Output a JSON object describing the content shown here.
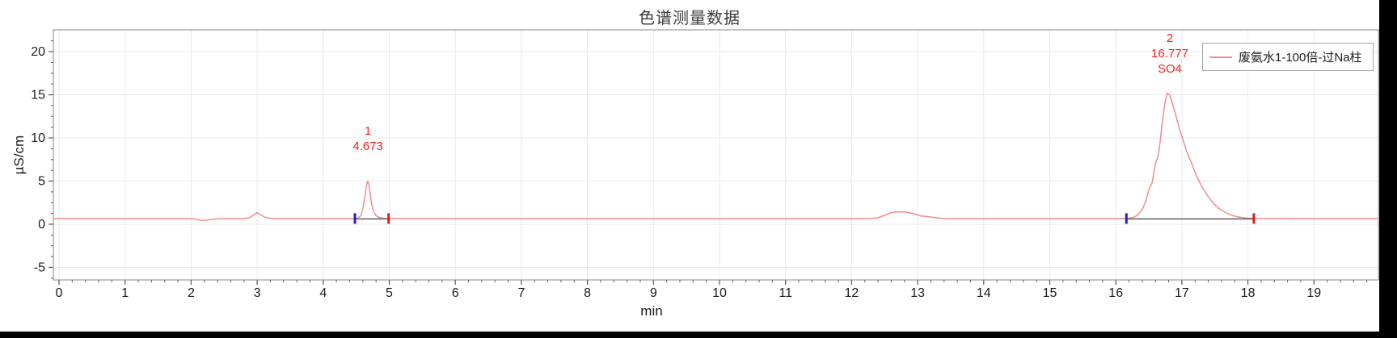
{
  "window": {
    "edge_bar_color": "#000000",
    "background": "#ffffff"
  },
  "chart_data": {
    "type": "line",
    "title": "色谱测量数据",
    "xlabel": "min",
    "ylabel": "µS/cm",
    "xlim": [
      -0.09,
      19.98
    ],
    "ylim": [
      -6.45,
      22.5
    ],
    "x_major_ticks": [
      0,
      1,
      2,
      3,
      4,
      5,
      6,
      7,
      8,
      9,
      10,
      11,
      12,
      13,
      14,
      15,
      16,
      17,
      18,
      19
    ],
    "x_minor_step": 0.2,
    "y_major_ticks": [
      -5,
      0,
      5,
      10,
      15,
      20
    ],
    "y_minor_step": 1.25,
    "grid": true,
    "legend": {
      "position": "top-right",
      "entries": [
        {
          "label": "废氨水1-100倍-过Na柱",
          "color": "#f28c8c"
        }
      ]
    },
    "colors": {
      "trace": "#f28c8c",
      "peak_label": "#fa1e1e",
      "grid": "#eaeaea",
      "frame": "#9b9b9b",
      "tick": "#5a5a5a",
      "tick_label": "#1a1a1a",
      "integration_baseline": "#5f5f5f",
      "marker_start": "#2222cc",
      "marker_end": "#d42020"
    },
    "baseline_level": 0.65,
    "peaks": [
      {
        "number": "1",
        "retention_time": "4.673",
        "annotation": "",
        "apex_x": 4.673,
        "apex_y": 5.0
      },
      {
        "number": "2",
        "retention_time": "16.777",
        "annotation": "SO4",
        "apex_x": 16.777,
        "apex_y": 15.2
      }
    ],
    "integrations": [
      {
        "start": 4.48,
        "end": 4.99,
        "level": 0.62
      },
      {
        "start": 16.16,
        "end": 18.09,
        "level": 0.62
      }
    ],
    "series": [
      {
        "name": "废氨水1-100倍-过Na柱",
        "color": "#f28c8c",
        "points": [
          [
            -0.09,
            0.65
          ],
          [
            2.0,
            0.65
          ],
          [
            2.08,
            0.6
          ],
          [
            2.15,
            0.45
          ],
          [
            2.25,
            0.5
          ],
          [
            2.35,
            0.6
          ],
          [
            2.45,
            0.65
          ],
          [
            2.8,
            0.65
          ],
          [
            2.88,
            0.75
          ],
          [
            2.95,
            1.1
          ],
          [
            3.0,
            1.35
          ],
          [
            3.05,
            1.1
          ],
          [
            3.12,
            0.8
          ],
          [
            3.2,
            0.68
          ],
          [
            3.3,
            0.65
          ],
          [
            4.45,
            0.65
          ],
          [
            4.52,
            0.7
          ],
          [
            4.57,
            1.0
          ],
          [
            4.6,
            1.8
          ],
          [
            4.63,
            3.2
          ],
          [
            4.655,
            4.5
          ],
          [
            4.673,
            5.0
          ],
          [
            4.69,
            4.6
          ],
          [
            4.71,
            3.6
          ],
          [
            4.73,
            2.5
          ],
          [
            4.76,
            1.5
          ],
          [
            4.8,
            1.0
          ],
          [
            4.85,
            0.78
          ],
          [
            4.92,
            0.68
          ],
          [
            5.0,
            0.65
          ],
          [
            12.25,
            0.65
          ],
          [
            12.4,
            0.75
          ],
          [
            12.5,
            1.05
          ],
          [
            12.6,
            1.35
          ],
          [
            12.7,
            1.45
          ],
          [
            12.8,
            1.42
          ],
          [
            12.9,
            1.3
          ],
          [
            13.0,
            1.1
          ],
          [
            13.05,
            0.95
          ],
          [
            13.15,
            0.9
          ],
          [
            13.25,
            0.78
          ],
          [
            13.4,
            0.68
          ],
          [
            13.5,
            0.65
          ],
          [
            16.15,
            0.65
          ],
          [
            16.25,
            0.75
          ],
          [
            16.32,
            1.0
          ],
          [
            16.4,
            1.7
          ],
          [
            16.45,
            2.6
          ],
          [
            16.5,
            4.0
          ],
          [
            16.55,
            4.8
          ],
          [
            16.58,
            6.2
          ],
          [
            16.61,
            7.3
          ],
          [
            16.63,
            7.6
          ],
          [
            16.655,
            8.6
          ],
          [
            16.68,
            10.2
          ],
          [
            16.7,
            11.6
          ],
          [
            16.73,
            13.3
          ],
          [
            16.75,
            14.3
          ],
          [
            16.777,
            15.2
          ],
          [
            16.81,
            15.0
          ],
          [
            16.84,
            14.4
          ],
          [
            16.88,
            13.4
          ],
          [
            16.92,
            12.3
          ],
          [
            16.97,
            10.9
          ],
          [
            17.02,
            9.7
          ],
          [
            17.08,
            8.3
          ],
          [
            17.15,
            7.0
          ],
          [
            17.22,
            5.6
          ],
          [
            17.3,
            4.4
          ],
          [
            17.38,
            3.4
          ],
          [
            17.46,
            2.6
          ],
          [
            17.55,
            1.9
          ],
          [
            17.65,
            1.4
          ],
          [
            17.75,
            1.05
          ],
          [
            17.85,
            0.85
          ],
          [
            17.95,
            0.74
          ],
          [
            18.1,
            0.68
          ],
          [
            18.3,
            0.66
          ],
          [
            19.98,
            0.65
          ]
        ]
      }
    ]
  }
}
